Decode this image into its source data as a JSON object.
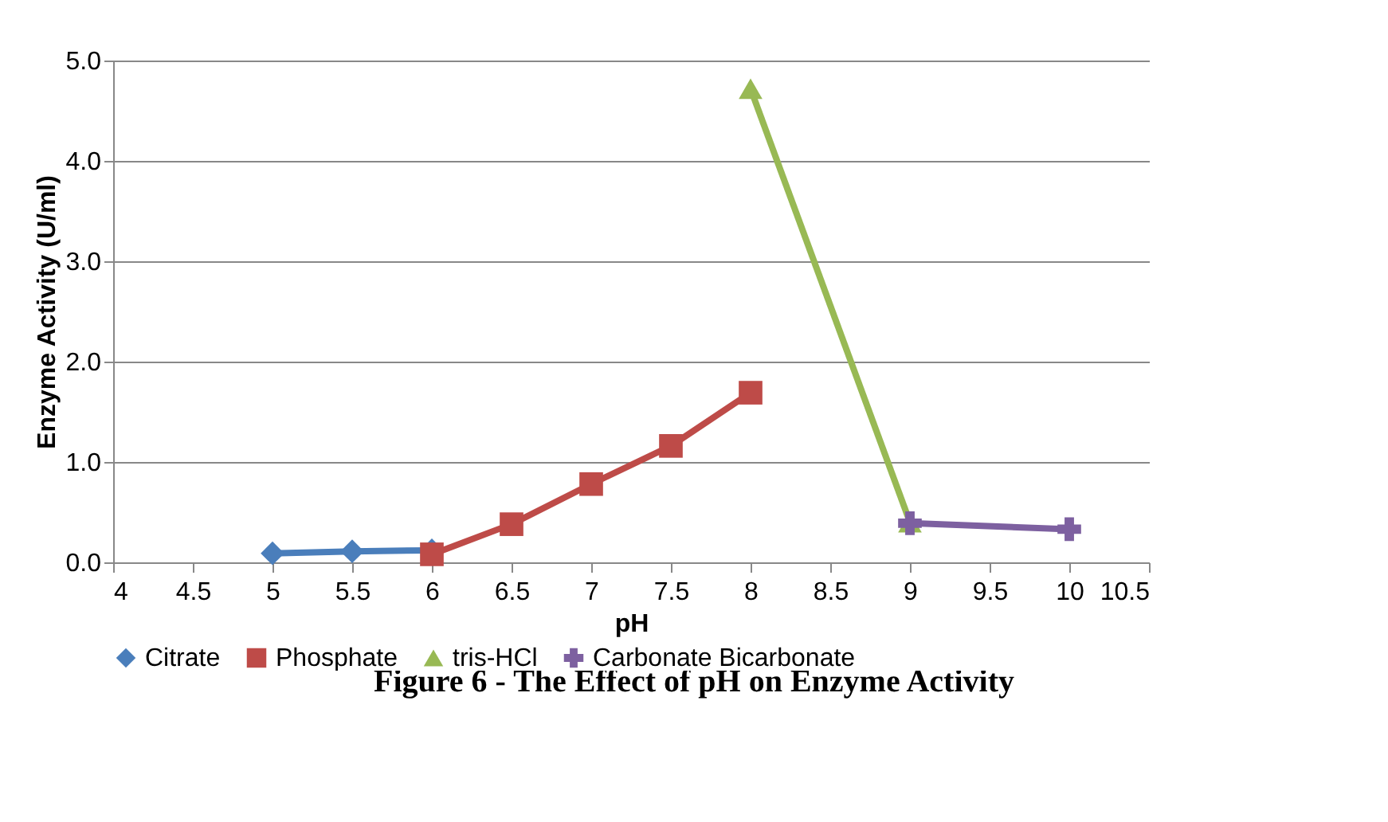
{
  "chart_data": {
    "type": "line",
    "xlabel": "pH",
    "ylabel": "Enzyme Activity (U/ml)",
    "xlim": [
      4,
      10.5
    ],
    "xticks": [
      4,
      4.5,
      5,
      5.5,
      6,
      6.5,
      7,
      7.5,
      8,
      8.5,
      9,
      9.5,
      10,
      10.5
    ],
    "ylim": [
      0,
      5
    ],
    "yticks": [
      {
        "value": 0,
        "label": "0.0"
      },
      {
        "value": 1,
        "label": "1.0"
      },
      {
        "value": 2,
        "label": "2.0"
      },
      {
        "value": 3,
        "label": "3.0"
      },
      {
        "value": 4,
        "label": "4.0"
      },
      {
        "value": 5,
        "label": "5.0"
      }
    ],
    "grid": "y",
    "legend": "bottom",
    "line_style": "solid",
    "series": [
      {
        "name": "Citrate",
        "color": "#4a7ebb",
        "marker": "diamond",
        "x": [
          5,
          5.5,
          6
        ],
        "values": [
          0.09,
          0.11,
          0.12
        ]
      },
      {
        "name": "Phosphate",
        "color": "#be4b48",
        "marker": "square",
        "x": [
          6,
          6.5,
          7,
          7.5,
          8
        ],
        "values": [
          0.08,
          0.38,
          0.78,
          1.16,
          1.69
        ]
      },
      {
        "name": "tris-HCl",
        "color": "#98b954",
        "marker": "triangle",
        "x": [
          8,
          9
        ],
        "values": [
          4.72,
          0.4
        ]
      },
      {
        "name": "Carbonate Bicarbonate",
        "color": "#7d60a0",
        "marker": "cross",
        "x": [
          9,
          10
        ],
        "values": [
          0.39,
          0.33
        ]
      }
    ],
    "annotations": [
      "Figure 6 - The Effect of pH on Enzyme Activity"
    ]
  }
}
